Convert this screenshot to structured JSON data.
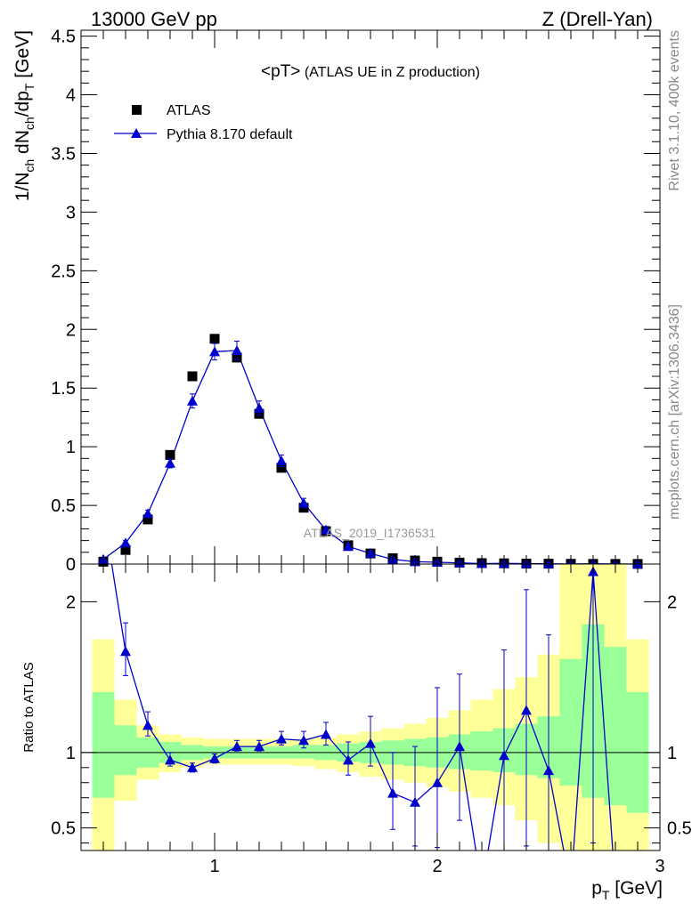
{
  "header": {
    "left": "13000 GeV pp",
    "right": "Z (Drell-Yan)"
  },
  "side": {
    "version": "Rivet 3.1.10,  400k events",
    "url": "mcplots.cern.ch [arXiv:1306.3436]"
  },
  "chart_data": {
    "type": "scatter",
    "title_main": "<pT>",
    "title_sub": " (ATLAS UE in Z production)",
    "watermark": "ATLAS_2019_I1736531",
    "ylabel_main": {
      "a": "1/N",
      "b": "ch",
      "c": " dN",
      "d": "ch",
      "e": "/dp",
      "f": "T",
      "g": " [GeV]"
    },
    "ylabel_ratio": "Ratio to ATLAS",
    "xlabel": {
      "a": "p",
      "b": "T",
      "c": " [GeV]"
    },
    "xlim": [
      0.4,
      3.0
    ],
    "ylim_main": [
      0,
      4.55
    ],
    "ylim_ratio": [
      0.35,
      2.25
    ],
    "main_yticks": [
      "0",
      "0.5",
      "1",
      "1.5",
      "2",
      "2.5",
      "3",
      "3.5",
      "4",
      "4.5"
    ],
    "ratio_yticks": [
      "0.5",
      "1",
      "2"
    ],
    "xticks": [
      "1",
      "2",
      "3"
    ],
    "legend": {
      "placement": "top-left",
      "data_label": "ATLAS",
      "mc_label": "Pythia 8.170 default"
    },
    "colors": {
      "mc": "#0000cc",
      "band_inner": "#99ff99",
      "band_outer": "#ffff99"
    },
    "x": [
      0.5,
      0.6,
      0.7,
      0.8,
      0.9,
      1.0,
      1.1,
      1.2,
      1.3,
      1.4,
      1.5,
      1.6,
      1.7,
      1.8,
      1.9,
      2.0,
      2.1,
      2.2,
      2.3,
      2.4,
      2.5,
      2.6,
      2.7,
      2.8,
      2.9
    ],
    "data_values": [
      0.02,
      0.12,
      0.38,
      0.93,
      1.6,
      1.92,
      1.76,
      1.28,
      0.82,
      0.48,
      0.28,
      0.16,
      0.09,
      0.05,
      0.03,
      0.02,
      0.012,
      0.008,
      0.006,
      0.004,
      0.003,
      0.002,
      0.0015,
      0.001,
      0.0008
    ],
    "mc_values": [
      0.04,
      0.18,
      0.43,
      0.86,
      1.39,
      1.81,
      1.82,
      1.33,
      0.88,
      0.52,
      0.29,
      0.15,
      0.09,
      0.04,
      0.02,
      0.015,
      0.01,
      0.004,
      0.005,
      0.004,
      0.002,
      0.001,
      0.003,
      0.0005,
      0.0003
    ],
    "mc_errors": [
      0.01,
      0.02,
      0.03,
      0.04,
      0.06,
      0.07,
      0.08,
      0.06,
      0.05,
      0.04,
      0.03,
      0.02,
      0.015,
      0.01,
      0.008,
      0.006,
      0.005,
      0.004,
      0.003,
      0.003,
      0.002,
      0.002,
      0.002,
      0.001,
      0.001
    ],
    "ratio_values": [
      2.6,
      1.67,
      1.18,
      0.95,
      0.9,
      0.96,
      1.04,
      1.04,
      1.09,
      1.08,
      1.12,
      0.95,
      1.06,
      0.73,
      0.67,
      0.8,
      1.04,
      0.1,
      0.98,
      1.28,
      0.88,
      0.1,
      2.2,
      0.1,
      0.1
    ],
    "ratio_err_lo": [
      0.3,
      0.16,
      0.07,
      0.04,
      0.03,
      0.03,
      0.03,
      0.03,
      0.04,
      0.05,
      0.07,
      0.1,
      0.15,
      0.24,
      0.29,
      0.43,
      0.49,
      0,
      0.65,
      0.9,
      0.9,
      0,
      1.8,
      0,
      0
    ],
    "ratio_err_hi": [
      0.3,
      0.19,
      0.09,
      0.05,
      0.03,
      0.03,
      0.04,
      0.04,
      0.05,
      0.06,
      0.08,
      0.12,
      0.18,
      0.27,
      0.37,
      0.63,
      0.48,
      0,
      0.7,
      0.8,
      0.9,
      0,
      0.05,
      0,
      0
    ],
    "band_inner_lo": [
      0.7,
      0.85,
      0.9,
      0.93,
      0.95,
      0.96,
      0.96,
      0.96,
      0.96,
      0.96,
      0.95,
      0.94,
      0.93,
      0.92,
      0.91,
      0.9,
      0.89,
      0.88,
      0.87,
      0.85,
      0.83,
      0.78,
      0.7,
      0.65,
      0.6
    ],
    "band_inner_hi": [
      1.4,
      1.18,
      1.1,
      1.07,
      1.05,
      1.04,
      1.04,
      1.04,
      1.04,
      1.05,
      1.05,
      1.06,
      1.07,
      1.08,
      1.09,
      1.1,
      1.12,
      1.14,
      1.16,
      1.19,
      1.24,
      1.62,
      1.85,
      1.7,
      1.4
    ],
    "band_outer_lo": [
      0.35,
      0.68,
      0.82,
      0.87,
      0.9,
      0.92,
      0.92,
      0.92,
      0.92,
      0.91,
      0.89,
      0.87,
      0.84,
      0.82,
      0.8,
      0.77,
      0.74,
      0.7,
      0.65,
      0.55,
      0.4,
      0.35,
      0.35,
      0.35,
      0.35
    ],
    "band_outer_hi": [
      1.75,
      1.35,
      1.18,
      1.12,
      1.1,
      1.09,
      1.09,
      1.09,
      1.09,
      1.09,
      1.1,
      1.12,
      1.14,
      1.16,
      1.19,
      1.23,
      1.28,
      1.35,
      1.42,
      1.5,
      1.65,
      2.25,
      2.25,
      2.25,
      1.75
    ]
  }
}
